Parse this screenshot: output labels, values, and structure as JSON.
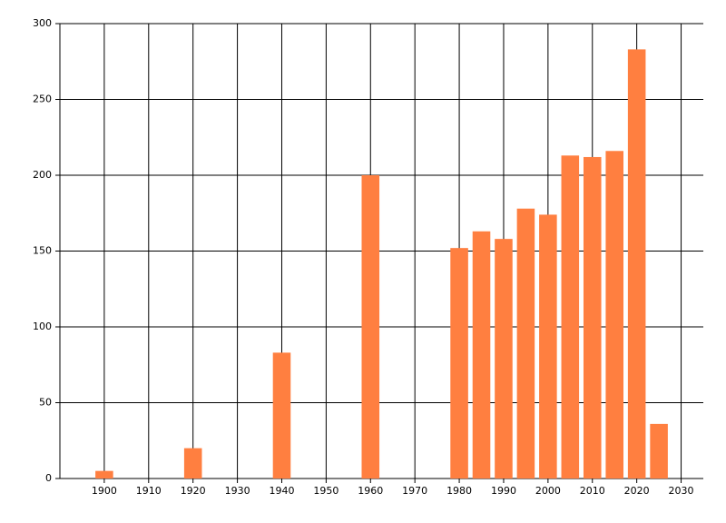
{
  "chart_data": {
    "type": "bar",
    "x": [
      1900,
      1920,
      1940,
      1960,
      1980,
      1985,
      1990,
      1995,
      2000,
      2005,
      2010,
      2015,
      2020,
      2025
    ],
    "values": [
      5,
      20,
      83,
      200,
      152,
      163,
      158,
      178,
      174,
      213,
      212,
      216,
      283,
      36
    ],
    "color": "#ff7f40",
    "xlim": [
      1890,
      2035
    ],
    "xticks": [
      1900,
      1910,
      1920,
      1930,
      1940,
      1950,
      1960,
      1970,
      1980,
      1990,
      2000,
      2010,
      2020,
      2030
    ],
    "ylim": [
      0,
      300
    ],
    "yticks": [
      0,
      50,
      100,
      150,
      200,
      250,
      300
    ],
    "grid": true
  }
}
